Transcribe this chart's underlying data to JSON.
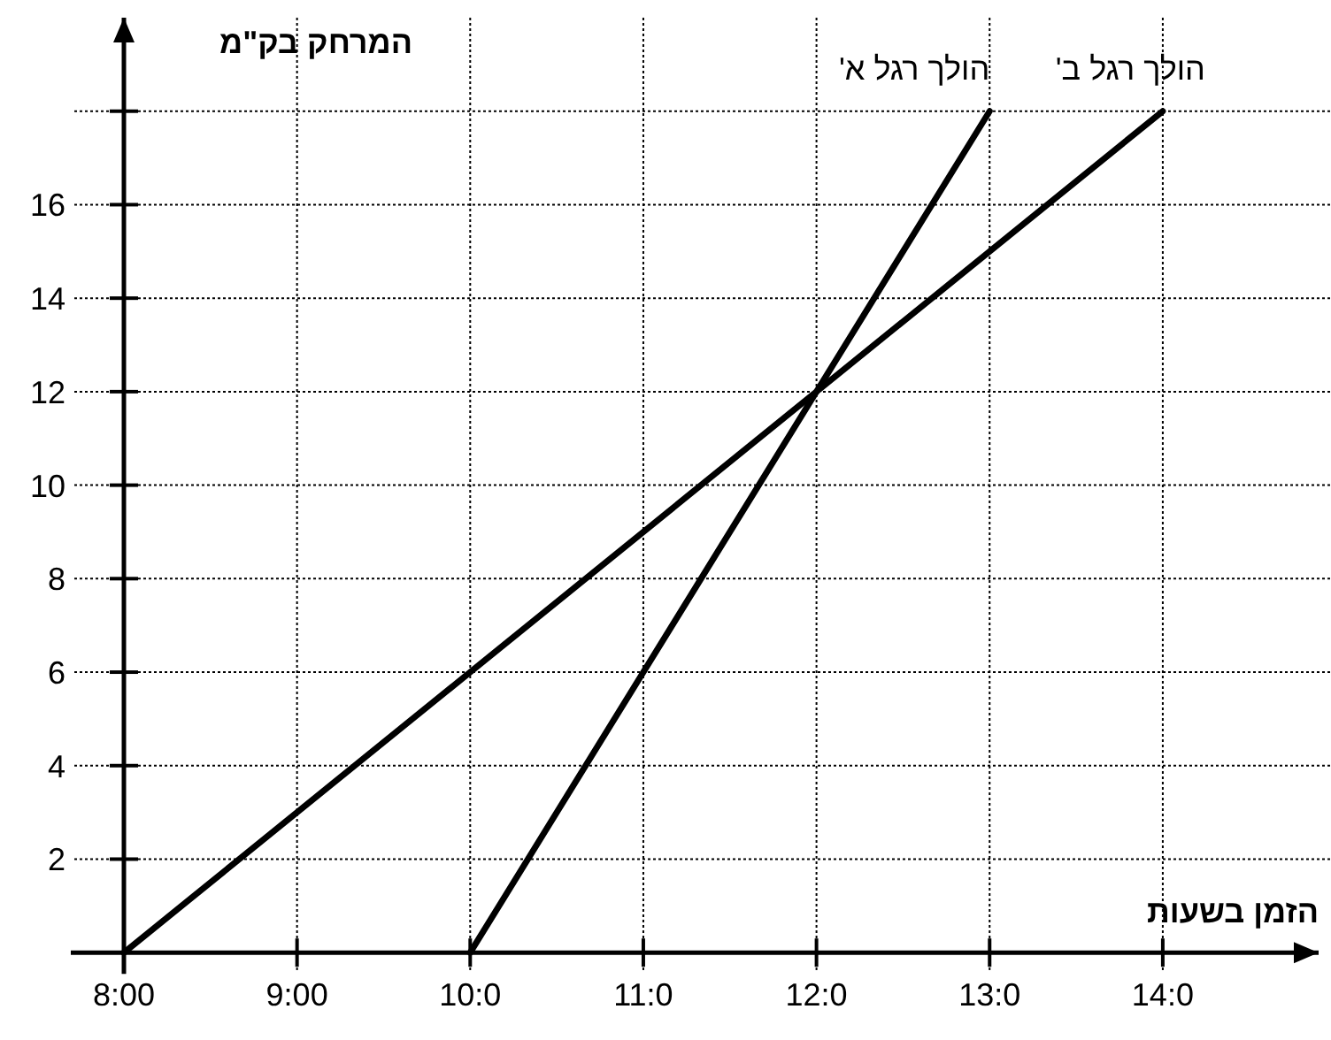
{
  "chart_data": {
    "type": "line",
    "xlabel": "הזמן בשעות",
    "ylabel": "המרחק בק\"מ",
    "series": [
      {
        "name": "הולך רגל א'",
        "color": "#000000",
        "x": [
          10,
          13
        ],
        "values": [
          0,
          18
        ]
      },
      {
        "name": "הולך רגל ב'",
        "color": "#000000",
        "x": [
          8,
          14
        ],
        "values": [
          0,
          18
        ]
      }
    ],
    "xlim": [
      8,
      14.9
    ],
    "ylim": [
      0,
      20
    ],
    "xticks": [
      {
        "value": 8,
        "label": "8:00"
      },
      {
        "value": 9,
        "label": "9:00"
      },
      {
        "value": 10,
        "label": "10:0"
      },
      {
        "value": 11,
        "label": "11:0"
      },
      {
        "value": 12,
        "label": "12:0"
      },
      {
        "value": 13,
        "label": "13:0"
      },
      {
        "value": 14,
        "label": "14:0"
      }
    ],
    "yticks": [
      2,
      4,
      6,
      8,
      10,
      12,
      14,
      16,
      {
        "value": 18,
        "label": null
      }
    ],
    "grid": true,
    "marker": "none",
    "line_style": "solid"
  }
}
